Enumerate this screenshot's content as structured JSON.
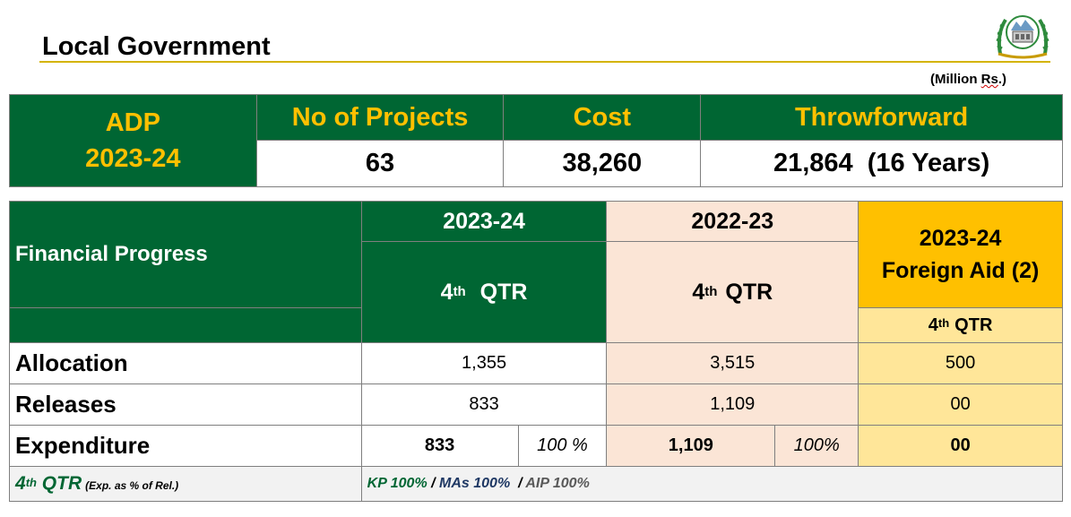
{
  "page": {
    "title": "Local Government",
    "unit_prefix": "(Million ",
    "unit_word": "Rs",
    "unit_suffix": ".)"
  },
  "summary": {
    "adp_label": "ADP",
    "adp_year": "2023-24",
    "headers": [
      "No of Projects",
      "Cost",
      "Throwforward"
    ],
    "values": [
      "63",
      "38,260",
      "21,864  (16 Years)"
    ]
  },
  "progress": {
    "row_header": "Financial Progress",
    "col_2023_year": "2023-24",
    "col_2023_qtr_num": "4",
    "col_2023_qtr_sup": "th",
    "col_2023_qtr_word": "QTR",
    "col_2022_year": "2022-23",
    "col_2022_qtr_num": "4",
    "col_2022_qtr_sup": "th",
    "col_2022_qtr_word": "QTR",
    "foreign_year": "2023-24",
    "foreign_label": "Foreign Aid (2)",
    "foreign_qtr_num": "4",
    "foreign_qtr_sup": "th",
    "foreign_qtr_word": "QTR",
    "rows": [
      {
        "label": "Allocation",
        "v2023": "1,355",
        "v2022": "3,515",
        "vforeign": "500"
      },
      {
        "label": "Releases",
        "v2023": "833",
        "v2022": "1,109",
        "vforeign": "00"
      },
      {
        "label": "Expenditure",
        "v2023": "833",
        "p2023": "100 %",
        "v2022": "1,109",
        "p2022": "100%",
        "vforeign": "00"
      }
    ],
    "note": {
      "qtr_num": "4",
      "qtr_sup": "th",
      "qtr_word": " QTR",
      "qtr_sub": "(Exp. as % of Rel.)",
      "kp": "KP  100%",
      "sep1": " / ",
      "mas": "MAs 100%",
      "sep2": "  / ",
      "aip": "AIP 100%"
    }
  },
  "colors": {
    "green": "#006633",
    "gold": "#ffc000",
    "light_gold": "#ffe699",
    "peach": "#fbe5d6",
    "rule": "#d4b400"
  },
  "icons": {
    "emblem": "government-emblem-icon"
  }
}
